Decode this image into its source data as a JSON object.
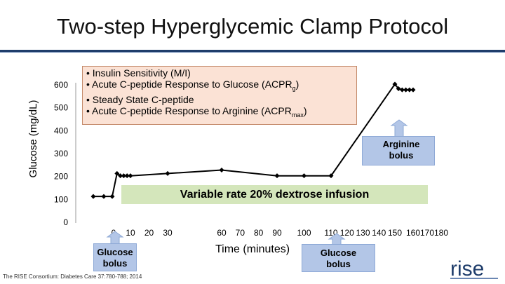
{
  "header": {
    "title": "Two-step Hyperglycemic Clamp Protocol"
  },
  "info_box": {
    "line1": "• Insulin Sensitivity (M/I)",
    "line2_main": "• Acute C-peptide Response to Glucose (ACPR",
    "line2_sub": "g",
    "line2_end": ")",
    "line3": "• Steady State C-peptide",
    "line4_main": "• Acute C-peptide Response to Arginine (ACPR",
    "line4_sub": "max",
    "line4_end": ")"
  },
  "annotations": {
    "dextrose": "Variable rate 20% dextrose infusion",
    "glucose_bolus": "Glucose bolus",
    "arginine_bolus": "Arginine bolus"
  },
  "citation": "The RISE Consortium: Diabetes Care 37:780-788; 2014",
  "logo_text": "rise",
  "colors": {
    "line": "#000000",
    "title_rule": "#1f3d6b",
    "info_box_fill": "#fbe2d5",
    "dextrose_fill": "#d4e6bb",
    "callout_fill": "#b3c6e7"
  },
  "chart_data": {
    "type": "line",
    "title": "Two-step Hyperglycemic Clamp Protocol",
    "xlabel": "Time (minutes)",
    "ylabel": "Glucose (mg/dL)",
    "ylim": [
      0,
      600
    ],
    "yticks": [
      0,
      100,
      200,
      300,
      400,
      500,
      600
    ],
    "xtick_labels_visible": [
      "0",
      "10",
      "20",
      "30",
      "60",
      "70",
      "80",
      "90",
      "100",
      "110",
      "120",
      "130",
      "140",
      "150",
      "160",
      "170",
      "180"
    ],
    "series": [
      {
        "points": [
          {
            "x": -10,
            "y": 110
          },
          {
            "x": -5,
            "y": 110
          },
          {
            "x": -1,
            "y": 110
          },
          {
            "x": 2,
            "y": 210
          },
          {
            "x": 4,
            "y": 200
          },
          {
            "x": 6,
            "y": 200
          },
          {
            "x": 8,
            "y": 200
          },
          {
            "x": 10,
            "y": 200
          },
          {
            "x": 30,
            "y": 210
          },
          {
            "x": 60,
            "y": 225
          },
          {
            "x": 90,
            "y": 200
          },
          {
            "x": 100,
            "y": 200
          },
          {
            "x": 110,
            "y": 200
          },
          {
            "x": 150,
            "y": 600
          },
          {
            "x": 152,
            "y": 580
          },
          {
            "x": 154,
            "y": 575
          },
          {
            "x": 156,
            "y": 575
          },
          {
            "x": 158,
            "y": 575
          },
          {
            "x": 160,
            "y": 575
          }
        ]
      }
    ]
  }
}
